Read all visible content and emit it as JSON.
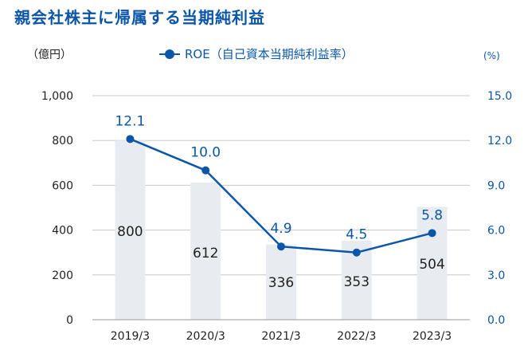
{
  "title": "親会社株主に帰属する当期純利益",
  "left_unit": "（億円）",
  "right_unit": "(%)",
  "legend_label": "ROE（自己資本当期純利益率）",
  "colors": {
    "bar": "#e8ecf0",
    "line": "#0b56a8",
    "title": "#0b56a8",
    "grid": "#c8c8c8"
  },
  "chart_data": {
    "type": "bar",
    "categories": [
      "2019/3",
      "2020/3",
      "2021/3",
      "2022/3",
      "2023/3"
    ],
    "series": [
      {
        "type": "bar",
        "axis": "left",
        "values": [
          800,
          612,
          336,
          353,
          504
        ]
      },
      {
        "type": "line",
        "axis": "right",
        "name": "ROE（自己資本当期純利益率）",
        "values": [
          12.1,
          10.0,
          4.9,
          4.5,
          5.8
        ]
      }
    ],
    "left_axis": {
      "min": 0,
      "max": 1000,
      "ticks": [
        "0",
        "200",
        "400",
        "600",
        "800",
        "1,000"
      ]
    },
    "right_axis": {
      "min": 0,
      "max": 15,
      "ticks": [
        "0.0",
        "3.0",
        "6.0",
        "9.0",
        "12.0",
        "15.0"
      ]
    },
    "bar_labels": [
      "800",
      "612",
      "336",
      "353",
      "504"
    ],
    "line_labels": [
      "12.1",
      "10.0",
      "4.9",
      "4.5",
      "5.8"
    ],
    "grid": true,
    "legend_position": "top-center"
  }
}
